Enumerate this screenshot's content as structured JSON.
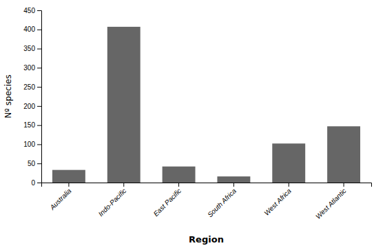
{
  "chart_data": {
    "type": "bar",
    "categories": [
      "Australia",
      "Indo-Pacific",
      "East Pacific",
      "South Africa",
      "West Africa",
      "West Atlantic"
    ],
    "values": [
      33,
      407,
      42,
      16,
      102,
      147
    ],
    "color": "#666666",
    "xlabel": "Region",
    "ylabel": "Nº species",
    "ylim": [
      0,
      450
    ],
    "yticks": [
      0,
      50,
      100,
      150,
      200,
      250,
      300,
      350,
      400,
      450
    ]
  }
}
